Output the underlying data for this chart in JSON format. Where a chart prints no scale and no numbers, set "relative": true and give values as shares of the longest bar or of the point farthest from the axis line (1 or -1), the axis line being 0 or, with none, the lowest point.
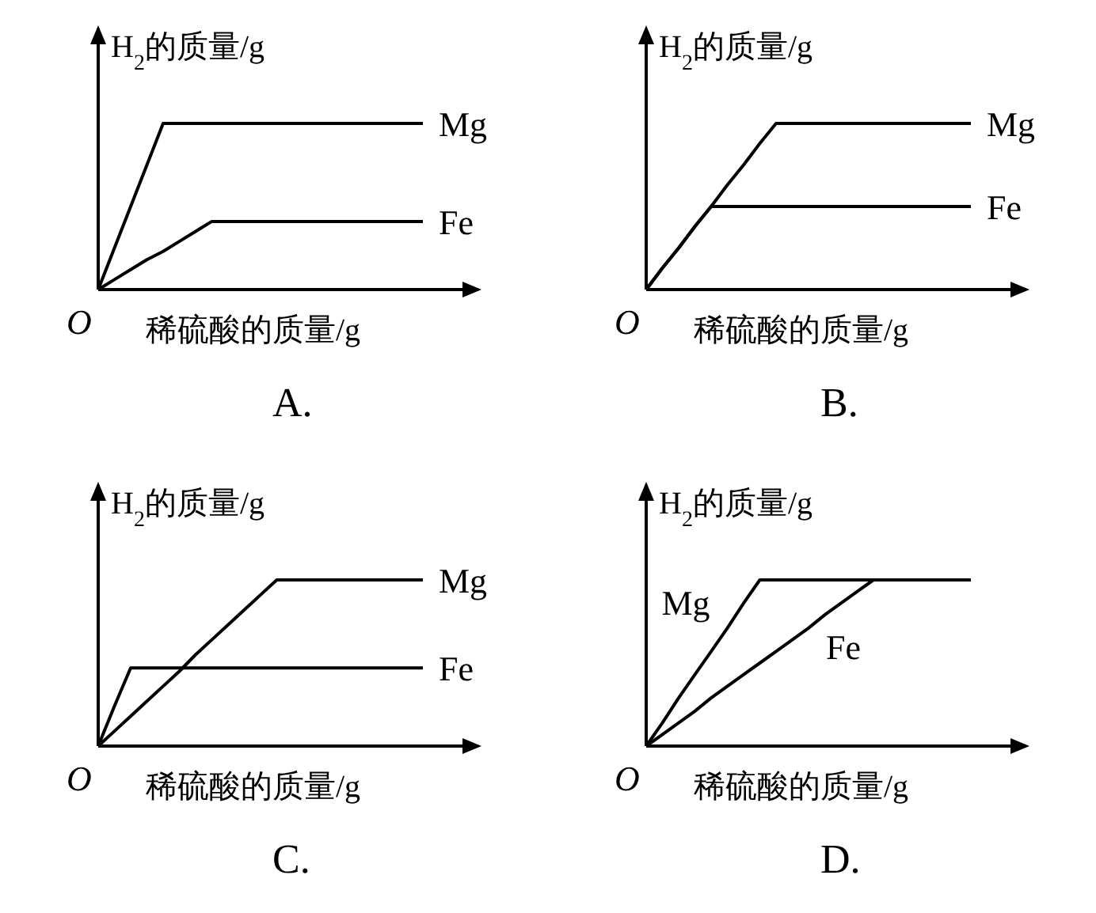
{
  "chart_data": [
    {
      "type": "line",
      "title": "A.",
      "xlabel": "稀硫酸的质量/g",
      "ylabel": "H$_{2}$的质量/g",
      "relative": true,
      "annotations": [
        "O"
      ],
      "categories": [
        null,
        null,
        null,
        null,
        null,
        null,
        null,
        null,
        null,
        null,
        null,
        null,
        null,
        null,
        null,
        null,
        null,
        null,
        null,
        null,
        null
      ],
      "series": [
        {
          "name": "Mg",
          "color": "#000000",
          "values": [
            0,
            0.25,
            0.5,
            0.75,
            1,
            1,
            1,
            1,
            1,
            1,
            1,
            1,
            1,
            1,
            1,
            1,
            1,
            1,
            1,
            1,
            1
          ]
        },
        {
          "name": "Fe",
          "color": "#000000",
          "values": [
            0,
            0.06,
            0.12,
            0.18,
            0.23,
            0.29,
            0.35,
            0.41,
            0.41,
            0.41,
            0.41,
            0.41,
            0.41,
            0.41,
            0.41,
            0.41,
            0.41,
            0.41,
            0.41,
            0.41,
            0.41
          ]
        }
      ]
    },
    {
      "type": "line",
      "title": "B.",
      "xlabel": "稀硫酸的质量/g",
      "ylabel": "H$_{2}$的质量/g",
      "relative": true,
      "annotations": [
        "O"
      ],
      "categories": [
        null,
        null,
        null,
        null,
        null,
        null,
        null,
        null,
        null,
        null,
        null,
        null,
        null,
        null,
        null,
        null,
        null,
        null,
        null,
        null,
        null
      ],
      "series": [
        {
          "name": "Mg",
          "color": "#000000",
          "values": [
            0,
            0.13,
            0.25,
            0.38,
            0.5,
            0.63,
            0.75,
            0.88,
            1,
            1,
            1,
            1,
            1,
            1,
            1,
            1,
            1,
            1,
            1,
            1,
            1
          ]
        },
        {
          "name": "Fe",
          "color": "#000000",
          "values": [
            0,
            0.13,
            0.25,
            0.38,
            0.5,
            0.5,
            0.5,
            0.5,
            0.5,
            0.5,
            0.5,
            0.5,
            0.5,
            0.5,
            0.5,
            0.5,
            0.5,
            0.5,
            0.5,
            0.5,
            0.5
          ]
        }
      ]
    },
    {
      "type": "line",
      "title": "C.",
      "xlabel": "稀硫酸的质量/g",
      "ylabel": "H$_{2}$的质量/g",
      "relative": true,
      "annotations": [
        "O"
      ],
      "categories": [
        null,
        null,
        null,
        null,
        null,
        null,
        null,
        null,
        null,
        null,
        null,
        null,
        null,
        null,
        null,
        null,
        null,
        null,
        null,
        null,
        null
      ],
      "series": [
        {
          "name": "Mg",
          "color": "#000000",
          "values": [
            0,
            0.09,
            0.18,
            0.27,
            0.36,
            0.45,
            0.55,
            0.64,
            0.73,
            0.82,
            0.91,
            1,
            1,
            1,
            1,
            1,
            1,
            1,
            1,
            1,
            1
          ]
        },
        {
          "name": "Fe",
          "color": "#000000",
          "values": [
            0,
            0.24,
            0.47,
            0.47,
            0.47,
            0.47,
            0.47,
            0.47,
            0.47,
            0.47,
            0.47,
            0.47,
            0.47,
            0.47,
            0.47,
            0.47,
            0.47,
            0.47,
            0.47,
            0.47,
            0.47
          ]
        }
      ]
    },
    {
      "type": "line",
      "title": "D.",
      "xlabel": "稀硫酸的质量/g",
      "ylabel": "H$_{2}$的质量/g",
      "relative": true,
      "annotations": [
        "O"
      ],
      "categories": [
        null,
        null,
        null,
        null,
        null,
        null,
        null,
        null,
        null,
        null,
        null,
        null,
        null,
        null,
        null,
        null,
        null,
        null,
        null,
        null,
        null
      ],
      "series": [
        {
          "name": "Mg",
          "color": "#000000",
          "values": [
            0,
            0.14,
            0.29,
            0.43,
            0.57,
            0.71,
            0.86,
            1,
            1,
            1,
            1,
            1,
            1,
            1,
            1,
            1,
            1,
            1,
            1,
            1,
            1
          ]
        },
        {
          "name": "Fe",
          "color": "#000000",
          "values": [
            0,
            0.07,
            0.14,
            0.21,
            0.29,
            0.36,
            0.43,
            0.5,
            0.57,
            0.64,
            0.71,
            0.79,
            0.86,
            0.93,
            1,
            1,
            1,
            1,
            1,
            1,
            1
          ]
        }
      ]
    }
  ]
}
